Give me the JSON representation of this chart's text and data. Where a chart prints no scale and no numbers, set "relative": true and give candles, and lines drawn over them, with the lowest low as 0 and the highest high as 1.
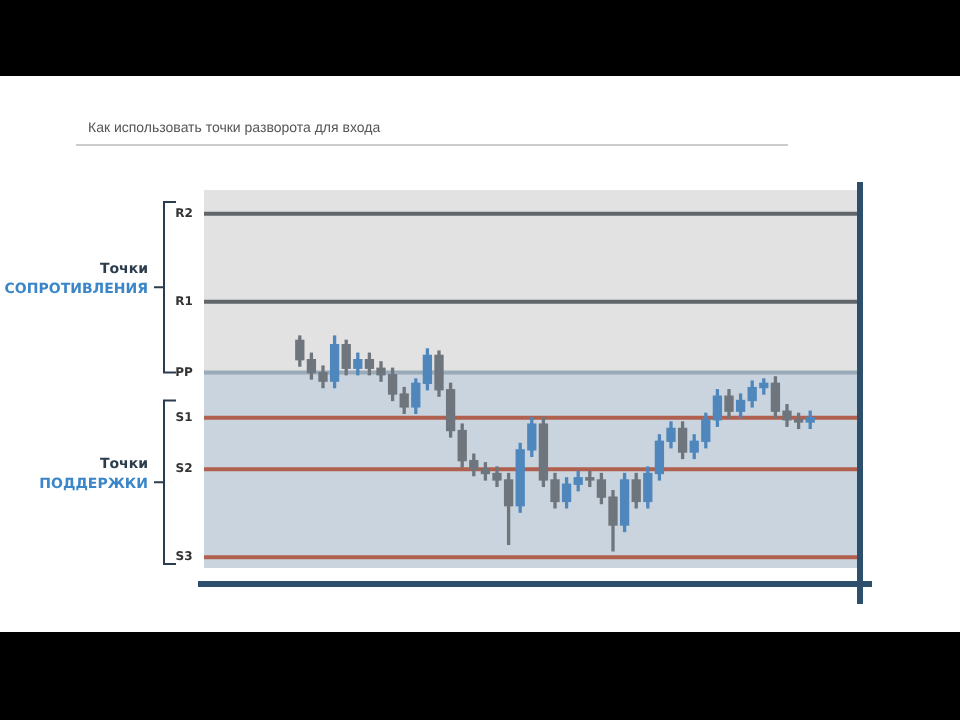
{
  "chart_data": {
    "type": "candlestick",
    "title": "Как использовать точки разворота для входа",
    "relative": true,
    "categories": [
      null,
      null,
      null,
      null,
      null,
      null,
      null,
      null,
      null,
      null,
      null,
      null,
      null,
      null,
      null,
      null,
      null,
      null,
      null,
      null,
      null,
      null,
      null,
      null,
      null,
      null,
      null,
      null,
      null,
      null,
      null,
      null,
      null,
      null,
      null,
      null,
      null,
      null,
      null,
      null,
      null,
      null,
      null,
      null,
      null
    ],
    "ohlc": [
      [
        0.98,
        1.0,
        0.86,
        0.89
      ],
      [
        0.89,
        0.92,
        0.8,
        0.83
      ],
      [
        0.83,
        0.86,
        0.76,
        0.79
      ],
      [
        0.79,
        1.0,
        0.76,
        0.96
      ],
      [
        0.96,
        0.98,
        0.82,
        0.85
      ],
      [
        0.85,
        0.92,
        0.82,
        0.89
      ],
      [
        0.89,
        0.92,
        0.82,
        0.85
      ],
      [
        0.85,
        0.88,
        0.79,
        0.82
      ],
      [
        0.82,
        0.85,
        0.7,
        0.73
      ],
      [
        0.73,
        0.76,
        0.64,
        0.67
      ],
      [
        0.67,
        0.8,
        0.64,
        0.78
      ],
      [
        0.78,
        0.94,
        0.75,
        0.91
      ],
      [
        0.91,
        0.93,
        0.72,
        0.75
      ],
      [
        0.75,
        0.78,
        0.53,
        0.56
      ],
      [
        0.56,
        0.59,
        0.39,
        0.42
      ],
      [
        0.42,
        0.45,
        0.35,
        0.38
      ],
      [
        0.38,
        0.41,
        0.33,
        0.36
      ],
      [
        0.36,
        0.39,
        0.3,
        0.33
      ],
      [
        0.33,
        0.36,
        0.03,
        0.21
      ],
      [
        0.21,
        0.5,
        0.18,
        0.47
      ],
      [
        0.47,
        0.62,
        0.44,
        0.59
      ],
      [
        0.59,
        0.62,
        0.3,
        0.33
      ],
      [
        0.33,
        0.36,
        0.2,
        0.23
      ],
      [
        0.23,
        0.34,
        0.2,
        0.31
      ],
      [
        0.31,
        0.37,
        0.28,
        0.34
      ],
      [
        0.34,
        0.37,
        0.3,
        0.33
      ],
      [
        0.33,
        0.36,
        0.22,
        0.25
      ],
      [
        0.25,
        0.28,
        0.0,
        0.12
      ],
      [
        0.12,
        0.36,
        0.09,
        0.33
      ],
      [
        0.33,
        0.36,
        0.2,
        0.23
      ],
      [
        0.23,
        0.39,
        0.2,
        0.36
      ],
      [
        0.36,
        0.54,
        0.33,
        0.51
      ],
      [
        0.51,
        0.6,
        0.48,
        0.57
      ],
      [
        0.57,
        0.6,
        0.43,
        0.46
      ],
      [
        0.46,
        0.54,
        0.43,
        0.51
      ],
      [
        0.51,
        0.64,
        0.48,
        0.61
      ],
      [
        0.61,
        0.75,
        0.58,
        0.72
      ],
      [
        0.72,
        0.75,
        0.62,
        0.65
      ],
      [
        0.65,
        0.73,
        0.62,
        0.7
      ],
      [
        0.7,
        0.79,
        0.67,
        0.76
      ],
      [
        0.76,
        0.8,
        0.73,
        0.78
      ],
      [
        0.78,
        0.81,
        0.62,
        0.65
      ],
      [
        0.65,
        0.68,
        0.58,
        0.61
      ],
      [
        0.61,
        0.64,
        0.57,
        0.6
      ],
      [
        0.6,
        0.65,
        0.57,
        0.62
      ]
    ],
    "colors": [
      "#6f757c",
      "#6f757c",
      "#6f757c",
      "#4f87bd",
      "#6f757c",
      "#4f87bd",
      "#6f757c",
      "#6f757c",
      "#6f757c",
      "#6f757c",
      "#4f87bd",
      "#4f87bd",
      "#6f757c",
      "#6f757c",
      "#6f757c",
      "#6f757c",
      "#6f757c",
      "#6f757c",
      "#6f757c",
      "#4f87bd",
      "#4f87bd",
      "#6f757c",
      "#6f757c",
      "#4f87bd",
      "#4f87bd",
      "#6f757c",
      "#6f757c",
      "#6f757c",
      "#4f87bd",
      "#6f757c",
      "#4f87bd",
      "#4f87bd",
      "#4f87bd",
      "#6f757c",
      "#4f87bd",
      "#4f87bd",
      "#4f87bd",
      "#6f757c",
      "#4f87bd",
      "#4f87bd",
      "#4f87bd",
      "#6f757c",
      "#6f757c",
      "#6f757c",
      "#4f87bd"
    ],
    "annotations": [
      "Точки СОПРОТИВЛЕНИЯ",
      "Точки ПОДДЕРЖКИ"
    ],
    "bands": [
      {
        "axis": "y",
        "from": 0.83,
        "to": 1.68,
        "color": "#e2e2e2"
      },
      {
        "axis": "y",
        "from": -0.08,
        "to": 0.83,
        "color": "#c9d4de"
      }
    ],
    "ref_lines": [
      {
        "axis": "y",
        "value": 1.57,
        "label": "R2",
        "color": "#61666b"
      },
      {
        "axis": "y",
        "value": 1.16,
        "label": "R1",
        "color": "#61666b"
      },
      {
        "axis": "y",
        "value": 0.83,
        "label": "PP",
        "color": "#9aaab8"
      },
      {
        "axis": "y",
        "value": 0.62,
        "label": "S1",
        "color": "#b0604f"
      },
      {
        "axis": "y",
        "value": 0.38,
        "label": "S2",
        "color": "#b0604f"
      },
      {
        "axis": "y",
        "value": -0.03,
        "label": "S3",
        "color": "#b0604f"
      }
    ]
  }
}
